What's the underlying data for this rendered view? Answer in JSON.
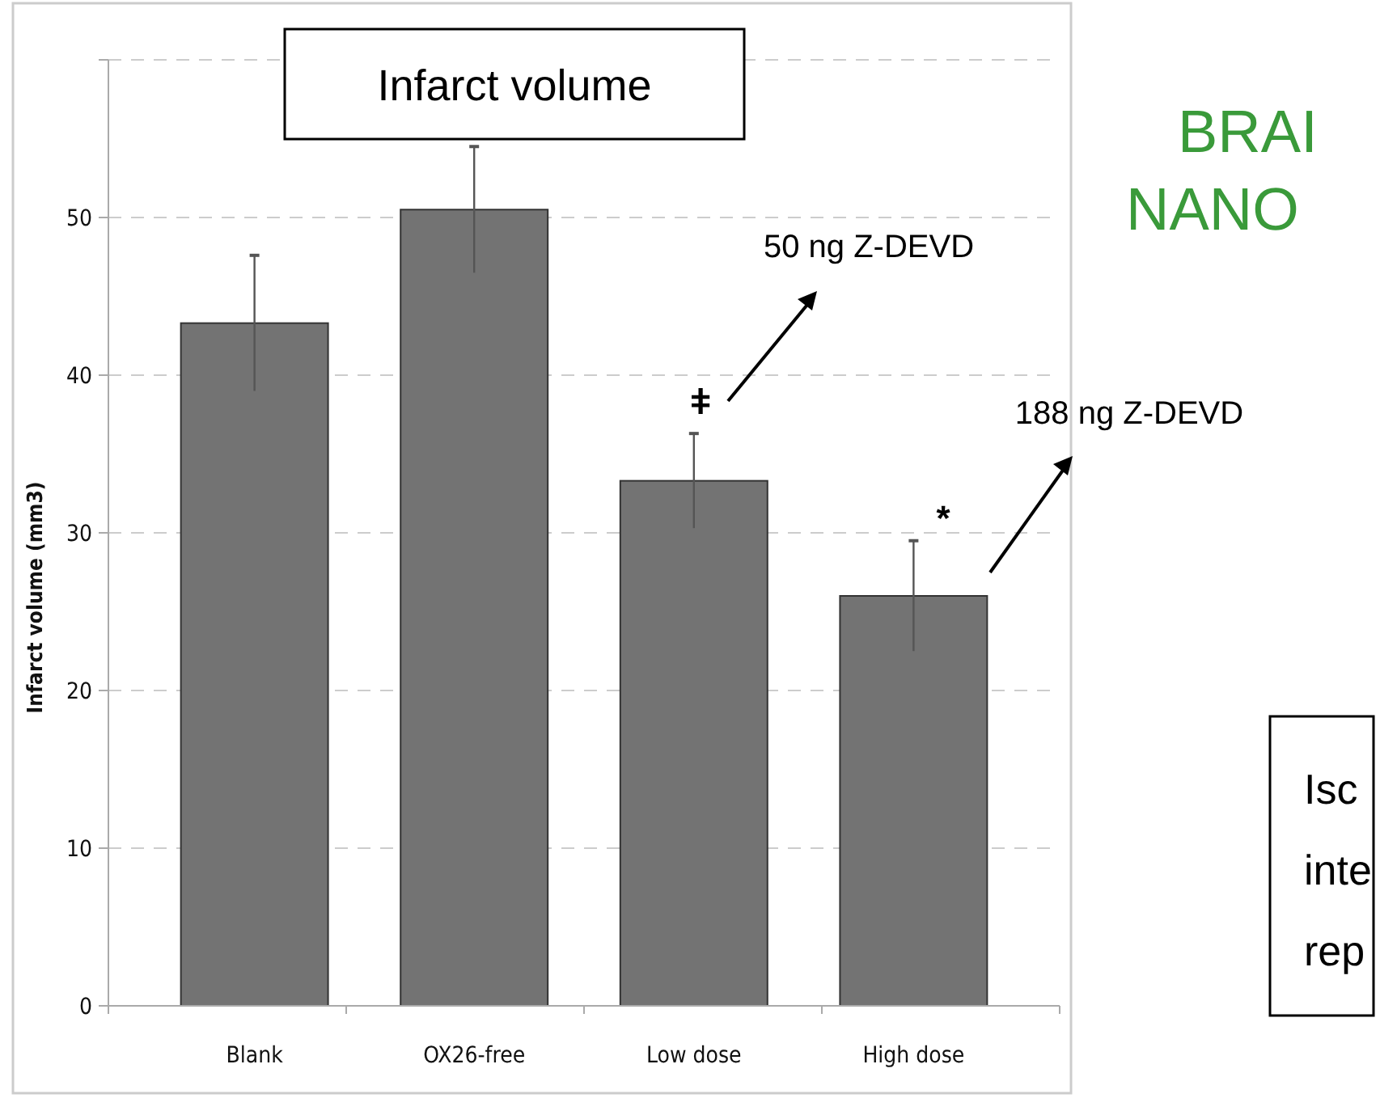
{
  "chart_data": {
    "type": "bar",
    "title": "Infarct volume",
    "ylabel": "Infarct volume (mm3)",
    "categories": [
      "Blank",
      "OX26-free",
      "Low dose",
      "High dose"
    ],
    "values": [
      43.3,
      50.5,
      33.3,
      26.0
    ],
    "errors": [
      4.3,
      4,
      3,
      3.5
    ],
    "color": "#737373",
    "ylim": [
      0,
      60
    ],
    "yticks": [
      0,
      10,
      20,
      30,
      40,
      50,
      {
        "value": 60,
        "label": null
      }
    ],
    "grid": "y",
    "annotations": [
      "ǂ",
      "*",
      "50 ng Z-DEVD",
      "188 ng Z-DEVD",
      "BRAI",
      "NANO",
      "Isc",
      "inte",
      "rep"
    ]
  }
}
